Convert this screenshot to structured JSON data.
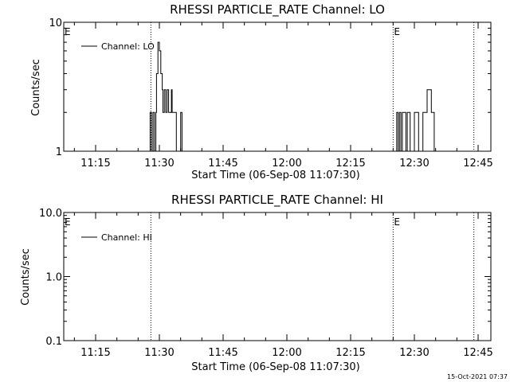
{
  "footer": "15-Oct-2021 07:37",
  "chart_data": [
    {
      "type": "line",
      "title": "RHESSI PARTICLE_RATE Channel: LO",
      "xlabel": "Start Time (06-Sep-08 11:07:30)",
      "ylabel": "Counts/sec",
      "yscale": "log",
      "xlim": [
        "11:07:30",
        "12:48:00"
      ],
      "ylim": [
        1,
        10
      ],
      "x_ticks": [
        "11:15",
        "11:30",
        "11:45",
        "12:00",
        "12:15",
        "12:30",
        "12:45"
      ],
      "y_ticks": [
        "1",
        "10"
      ],
      "legend": "top-left",
      "grid": false,
      "event_lines": [
        "11:28",
        "12:25",
        "12:44"
      ],
      "event_label": "E",
      "series": [
        {
          "name": "Channel: LO",
          "x": [
            "11:27:30",
            "11:27:50",
            "11:28:10",
            "11:28:30",
            "11:28:50",
            "11:29:10",
            "11:29:20",
            "11:29:40",
            "11:30:00",
            "11:30:20",
            "11:30:40",
            "11:30:50",
            "11:31:10",
            "11:31:30",
            "11:31:50",
            "11:32:10",
            "11:32:30",
            "11:32:50",
            "11:33:00",
            "11:33:20",
            "11:34:00",
            "11:35:00",
            "11:35:20",
            "11:35:40",
            "12:25:30",
            "12:25:50",
            "12:26:10",
            "12:26:30",
            "12:26:50",
            "12:27:10",
            "12:28:00",
            "12:28:20",
            "12:29:00",
            "12:30:00",
            "12:31:00",
            "12:32:00",
            "12:33:00",
            "12:34:00",
            "12:34:40"
          ],
          "y": [
            1,
            2,
            1,
            2,
            1,
            2,
            4,
            7,
            6,
            4,
            3,
            2,
            3,
            2,
            3,
            2,
            2,
            3,
            2,
            2,
            1,
            2,
            1,
            1,
            1,
            2,
            1,
            2,
            1,
            2,
            1,
            2,
            1,
            2,
            1,
            2,
            3,
            2,
            1
          ]
        }
      ]
    },
    {
      "type": "line",
      "title": "RHESSI PARTICLE_RATE Channel: HI",
      "xlabel": "Start Time (06-Sep-08 11:07:30)",
      "ylabel": "Counts/sec",
      "yscale": "log",
      "xlim": [
        "11:07:30",
        "12:48:00"
      ],
      "ylim": [
        0.1,
        10
      ],
      "x_ticks": [
        "11:15",
        "11:30",
        "11:45",
        "12:00",
        "12:15",
        "12:30",
        "12:45"
      ],
      "y_ticks": [
        "0.1",
        "1.0",
        "10.0"
      ],
      "legend": "top-left",
      "grid": false,
      "event_lines": [
        "11:28",
        "12:25",
        "12:44"
      ],
      "event_label": "E",
      "series": [
        {
          "name": "Channel: HI",
          "x": [],
          "y": []
        }
      ]
    }
  ]
}
